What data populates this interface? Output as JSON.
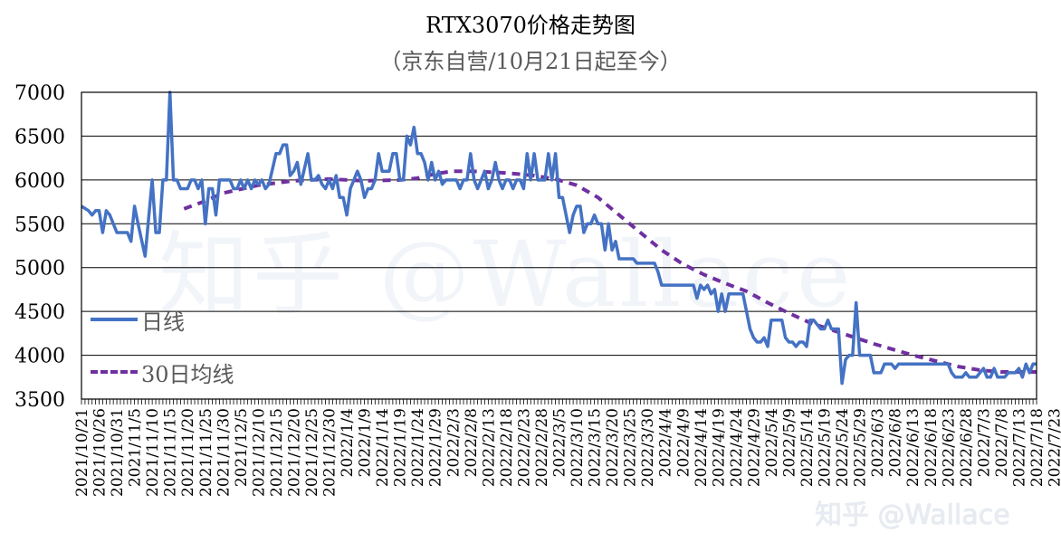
{
  "chart_data": {
    "type": "line",
    "title": "RTX3070价格走势图",
    "subtitle": "（京东自营/10月21日起至今）",
    "xlabel": "",
    "ylabel": "",
    "ylim": [
      3500,
      7000
    ],
    "yticks": [
      "7000",
      "6500",
      "6000",
      "5500",
      "5000",
      "4500",
      "4000",
      "3500"
    ],
    "xticks": [
      "2021/10/21",
      "2021/10/26",
      "2021/10/31",
      "2021/11/5",
      "2021/11/10",
      "2021/11/15",
      "2021/11/20",
      "2021/11/25",
      "2021/11/30",
      "2021/12/5",
      "2021/12/10",
      "2021/12/15",
      "2021/12/20",
      "2021/12/25",
      "2021/12/30",
      "2022/1/4",
      "2022/1/9",
      "2022/1/14",
      "2022/1/19",
      "2022/1/24",
      "2022/1/29",
      "2022/2/3",
      "2022/2/8",
      "2022/2/13",
      "2022/2/18",
      "2022/2/23",
      "2022/2/28",
      "2022/3/5",
      "2022/3/10",
      "2022/3/15",
      "2022/3/20",
      "2022/3/25",
      "2022/3/30",
      "2022/4/4",
      "2022/4/9",
      "2022/4/14",
      "2022/4/19",
      "2022/4/24",
      "2022/4/29",
      "2022/5/4",
      "2022/5/9",
      "2022/5/14",
      "2022/5/19",
      "2022/5/24",
      "2022/5/29",
      "2022/6/3",
      "2022/6/8",
      "2022/6/13",
      "2022/6/18",
      "2022/6/23",
      "2022/6/28",
      "2022/7/3",
      "2022/7/8",
      "2022/7/13",
      "2022/7/18",
      "2022/7/23"
    ],
    "grid": true,
    "legend_position": "left-lower",
    "series": [
      {
        "name": "日线",
        "color": "#4472c4",
        "points": [
          [
            0,
            5700
          ],
          [
            2,
            5650
          ],
          [
            3,
            5600
          ],
          [
            4,
            5650
          ],
          [
            5,
            5650
          ],
          [
            6,
            5400
          ],
          [
            7,
            5650
          ],
          [
            8,
            5600
          ],
          [
            10,
            5400
          ],
          [
            13,
            5400
          ],
          [
            14,
            5300
          ],
          [
            15,
            5700
          ],
          [
            16,
            5500
          ],
          [
            18,
            5130
          ],
          [
            20,
            6000
          ],
          [
            21,
            5400
          ],
          [
            22,
            5400
          ],
          [
            23,
            6000
          ],
          [
            24,
            6000
          ],
          [
            25,
            7000
          ],
          [
            26,
            6000
          ],
          [
            27,
            6000
          ],
          [
            28,
            5900
          ],
          [
            30,
            5900
          ],
          [
            31,
            6000
          ],
          [
            32,
            6000
          ],
          [
            33,
            5900
          ],
          [
            34,
            6000
          ],
          [
            35,
            5500
          ],
          [
            36,
            5900
          ],
          [
            37,
            5900
          ],
          [
            38,
            5600
          ],
          [
            39,
            6000
          ],
          [
            40,
            6000
          ],
          [
            42,
            6000
          ],
          [
            43,
            5900
          ],
          [
            44,
            5900
          ],
          [
            45,
            6000
          ],
          [
            46,
            5900
          ],
          [
            47,
            6000
          ],
          [
            48,
            5900
          ],
          [
            49,
            6000
          ],
          [
            50,
            5950
          ],
          [
            51,
            6000
          ],
          [
            52,
            5900
          ],
          [
            53,
            5950
          ],
          [
            55,
            6300
          ],
          [
            56,
            6300
          ],
          [
            57,
            6400
          ],
          [
            58,
            6400
          ],
          [
            59,
            6050
          ],
          [
            60,
            6100
          ],
          [
            61,
            6200
          ],
          [
            62,
            5950
          ],
          [
            64,
            6300
          ],
          [
            65,
            6000
          ],
          [
            66,
            6000
          ],
          [
            67,
            6050
          ],
          [
            68,
            5950
          ],
          [
            69,
            5900
          ],
          [
            70,
            6000
          ],
          [
            71,
            5900
          ],
          [
            72,
            6050
          ],
          [
            73,
            5800
          ],
          [
            74,
            5800
          ],
          [
            75,
            5600
          ],
          [
            76,
            5900
          ],
          [
            77,
            6000
          ],
          [
            78,
            6100
          ],
          [
            79,
            6000
          ],
          [
            80,
            5800
          ],
          [
            81,
            5900
          ],
          [
            82,
            5900
          ],
          [
            83,
            6000
          ],
          [
            84,
            6300
          ],
          [
            85,
            6100
          ],
          [
            86,
            6100
          ],
          [
            87,
            6100
          ],
          [
            88,
            6300
          ],
          [
            89,
            6300
          ],
          [
            90,
            6000
          ],
          [
            91,
            6000
          ],
          [
            92,
            6500
          ],
          [
            93,
            6400
          ],
          [
            94,
            6600
          ],
          [
            95,
            6300
          ],
          [
            96,
            6300
          ],
          [
            97,
            6200
          ],
          [
            98,
            6000
          ],
          [
            99,
            6200
          ],
          [
            100,
            6000
          ],
          [
            101,
            6100
          ],
          [
            102,
            5950
          ],
          [
            103,
            6000
          ],
          [
            104,
            6000
          ],
          [
            106,
            6000
          ],
          [
            107,
            5900
          ],
          [
            108,
            6000
          ],
          [
            109,
            6000
          ],
          [
            110,
            6300
          ],
          [
            111,
            6000
          ],
          [
            112,
            5900
          ],
          [
            113,
            6000
          ],
          [
            114,
            6100
          ],
          [
            115,
            5900
          ],
          [
            116,
            6000
          ],
          [
            117,
            6200
          ],
          [
            118,
            6000
          ],
          [
            119,
            5900
          ],
          [
            120,
            6000
          ],
          [
            121,
            6000
          ],
          [
            122,
            5900
          ],
          [
            123,
            6000
          ],
          [
            124,
            6000
          ],
          [
            125,
            5900
          ],
          [
            126,
            6300
          ],
          [
            127,
            6000
          ],
          [
            128,
            6300
          ],
          [
            129,
            6000
          ],
          [
            130,
            6000
          ],
          [
            131,
            6000
          ],
          [
            132,
            6300
          ],
          [
            133,
            6000
          ],
          [
            134,
            6300
          ],
          [
            135,
            5800
          ],
          [
            136,
            5800
          ],
          [
            137,
            5600
          ],
          [
            138,
            5400
          ],
          [
            139,
            5600
          ],
          [
            140,
            5700
          ],
          [
            141,
            5700
          ],
          [
            142,
            5400
          ],
          [
            143,
            5500
          ],
          [
            144,
            5500
          ],
          [
            145,
            5600
          ],
          [
            146,
            5500
          ],
          [
            147,
            5500
          ],
          [
            148,
            5200
          ],
          [
            149,
            5500
          ],
          [
            150,
            5200
          ],
          [
            151,
            5300
          ],
          [
            152,
            5100
          ],
          [
            156,
            5100
          ],
          [
            157,
            5050
          ],
          [
            162,
            5050
          ],
          [
            163,
            4950
          ],
          [
            164,
            4800
          ],
          [
            173,
            4800
          ],
          [
            174,
            4650
          ],
          [
            175,
            4800
          ],
          [
            176,
            4750
          ],
          [
            177,
            4800
          ],
          [
            178,
            4700
          ],
          [
            179,
            4750
          ],
          [
            180,
            4500
          ],
          [
            181,
            4700
          ],
          [
            182,
            4500
          ],
          [
            183,
            4700
          ],
          [
            184,
            4700
          ],
          [
            187,
            4700
          ],
          [
            188,
            4500
          ],
          [
            189,
            4300
          ],
          [
            190,
            4200
          ],
          [
            191,
            4150
          ],
          [
            192,
            4150
          ],
          [
            193,
            4200
          ],
          [
            194,
            4100
          ],
          [
            195,
            4400
          ],
          [
            196,
            4400
          ],
          [
            197,
            4400
          ],
          [
            198,
            4400
          ],
          [
            199,
            4200
          ],
          [
            200,
            4150
          ],
          [
            201,
            4150
          ],
          [
            202,
            4100
          ],
          [
            203,
            4150
          ],
          [
            204,
            4150
          ],
          [
            205,
            4100
          ],
          [
            206,
            4400
          ],
          [
            207,
            4400
          ],
          [
            208,
            4350
          ],
          [
            209,
            4300
          ],
          [
            210,
            4300
          ],
          [
            211,
            4400
          ],
          [
            212,
            4300
          ],
          [
            213,
            4300
          ],
          [
            214,
            4300
          ],
          [
            215,
            3680
          ],
          [
            216,
            3950
          ],
          [
            217,
            4000
          ],
          [
            218,
            4000
          ],
          [
            219,
            4600
          ],
          [
            220,
            4000
          ],
          [
            221,
            4000
          ],
          [
            222,
            4000
          ],
          [
            223,
            4000
          ],
          [
            224,
            3800
          ],
          [
            225,
            3800
          ],
          [
            226,
            3800
          ],
          [
            227,
            3900
          ],
          [
            228,
            3900
          ],
          [
            229,
            3900
          ],
          [
            230,
            3850
          ],
          [
            231,
            3900
          ],
          [
            232,
            3900
          ],
          [
            245,
            3900
          ],
          [
            246,
            3800
          ],
          [
            247,
            3750
          ],
          [
            248,
            3750
          ],
          [
            249,
            3750
          ],
          [
            250,
            3800
          ],
          [
            251,
            3750
          ],
          [
            252,
            3750
          ],
          [
            253,
            3750
          ],
          [
            254,
            3800
          ],
          [
            255,
            3850
          ],
          [
            256,
            3750
          ],
          [
            257,
            3750
          ],
          [
            258,
            3850
          ],
          [
            259,
            3750
          ],
          [
            260,
            3750
          ],
          [
            261,
            3750
          ],
          [
            262,
            3800
          ],
          [
            263,
            3800
          ],
          [
            264,
            3800
          ],
          [
            265,
            3850
          ],
          [
            266,
            3750
          ],
          [
            267,
            3900
          ],
          [
            268,
            3800
          ],
          [
            269,
            3900
          ],
          [
            270,
            3900
          ]
        ]
      },
      {
        "name": "30日均线",
        "color": "#7030a0",
        "points": [
          [
            29,
            5670
          ],
          [
            35,
            5760
          ],
          [
            40,
            5850
          ],
          [
            50,
            5940
          ],
          [
            60,
            5990
          ],
          [
            70,
            6010
          ],
          [
            80,
            5990
          ],
          [
            90,
            6000
          ],
          [
            95,
            6020
          ],
          [
            100,
            6070
          ],
          [
            105,
            6100
          ],
          [
            110,
            6100
          ],
          [
            120,
            6080
          ],
          [
            128,
            6050
          ],
          [
            134,
            6010
          ],
          [
            140,
            5940
          ],
          [
            146,
            5800
          ],
          [
            152,
            5600
          ],
          [
            158,
            5400
          ],
          [
            164,
            5200
          ],
          [
            170,
            5040
          ],
          [
            176,
            4920
          ],
          [
            182,
            4820
          ],
          [
            188,
            4730
          ],
          [
            194,
            4600
          ],
          [
            200,
            4480
          ],
          [
            206,
            4370
          ],
          [
            212,
            4290
          ],
          [
            218,
            4210
          ],
          [
            224,
            4130
          ],
          [
            230,
            4060
          ],
          [
            236,
            3990
          ],
          [
            242,
            3930
          ],
          [
            248,
            3870
          ],
          [
            254,
            3830
          ],
          [
            260,
            3810
          ],
          [
            266,
            3810
          ],
          [
            270,
            3810
          ]
        ]
      }
    ],
    "watermark": "知乎 @Wallace"
  },
  "brand": "知乎 @Wallace"
}
